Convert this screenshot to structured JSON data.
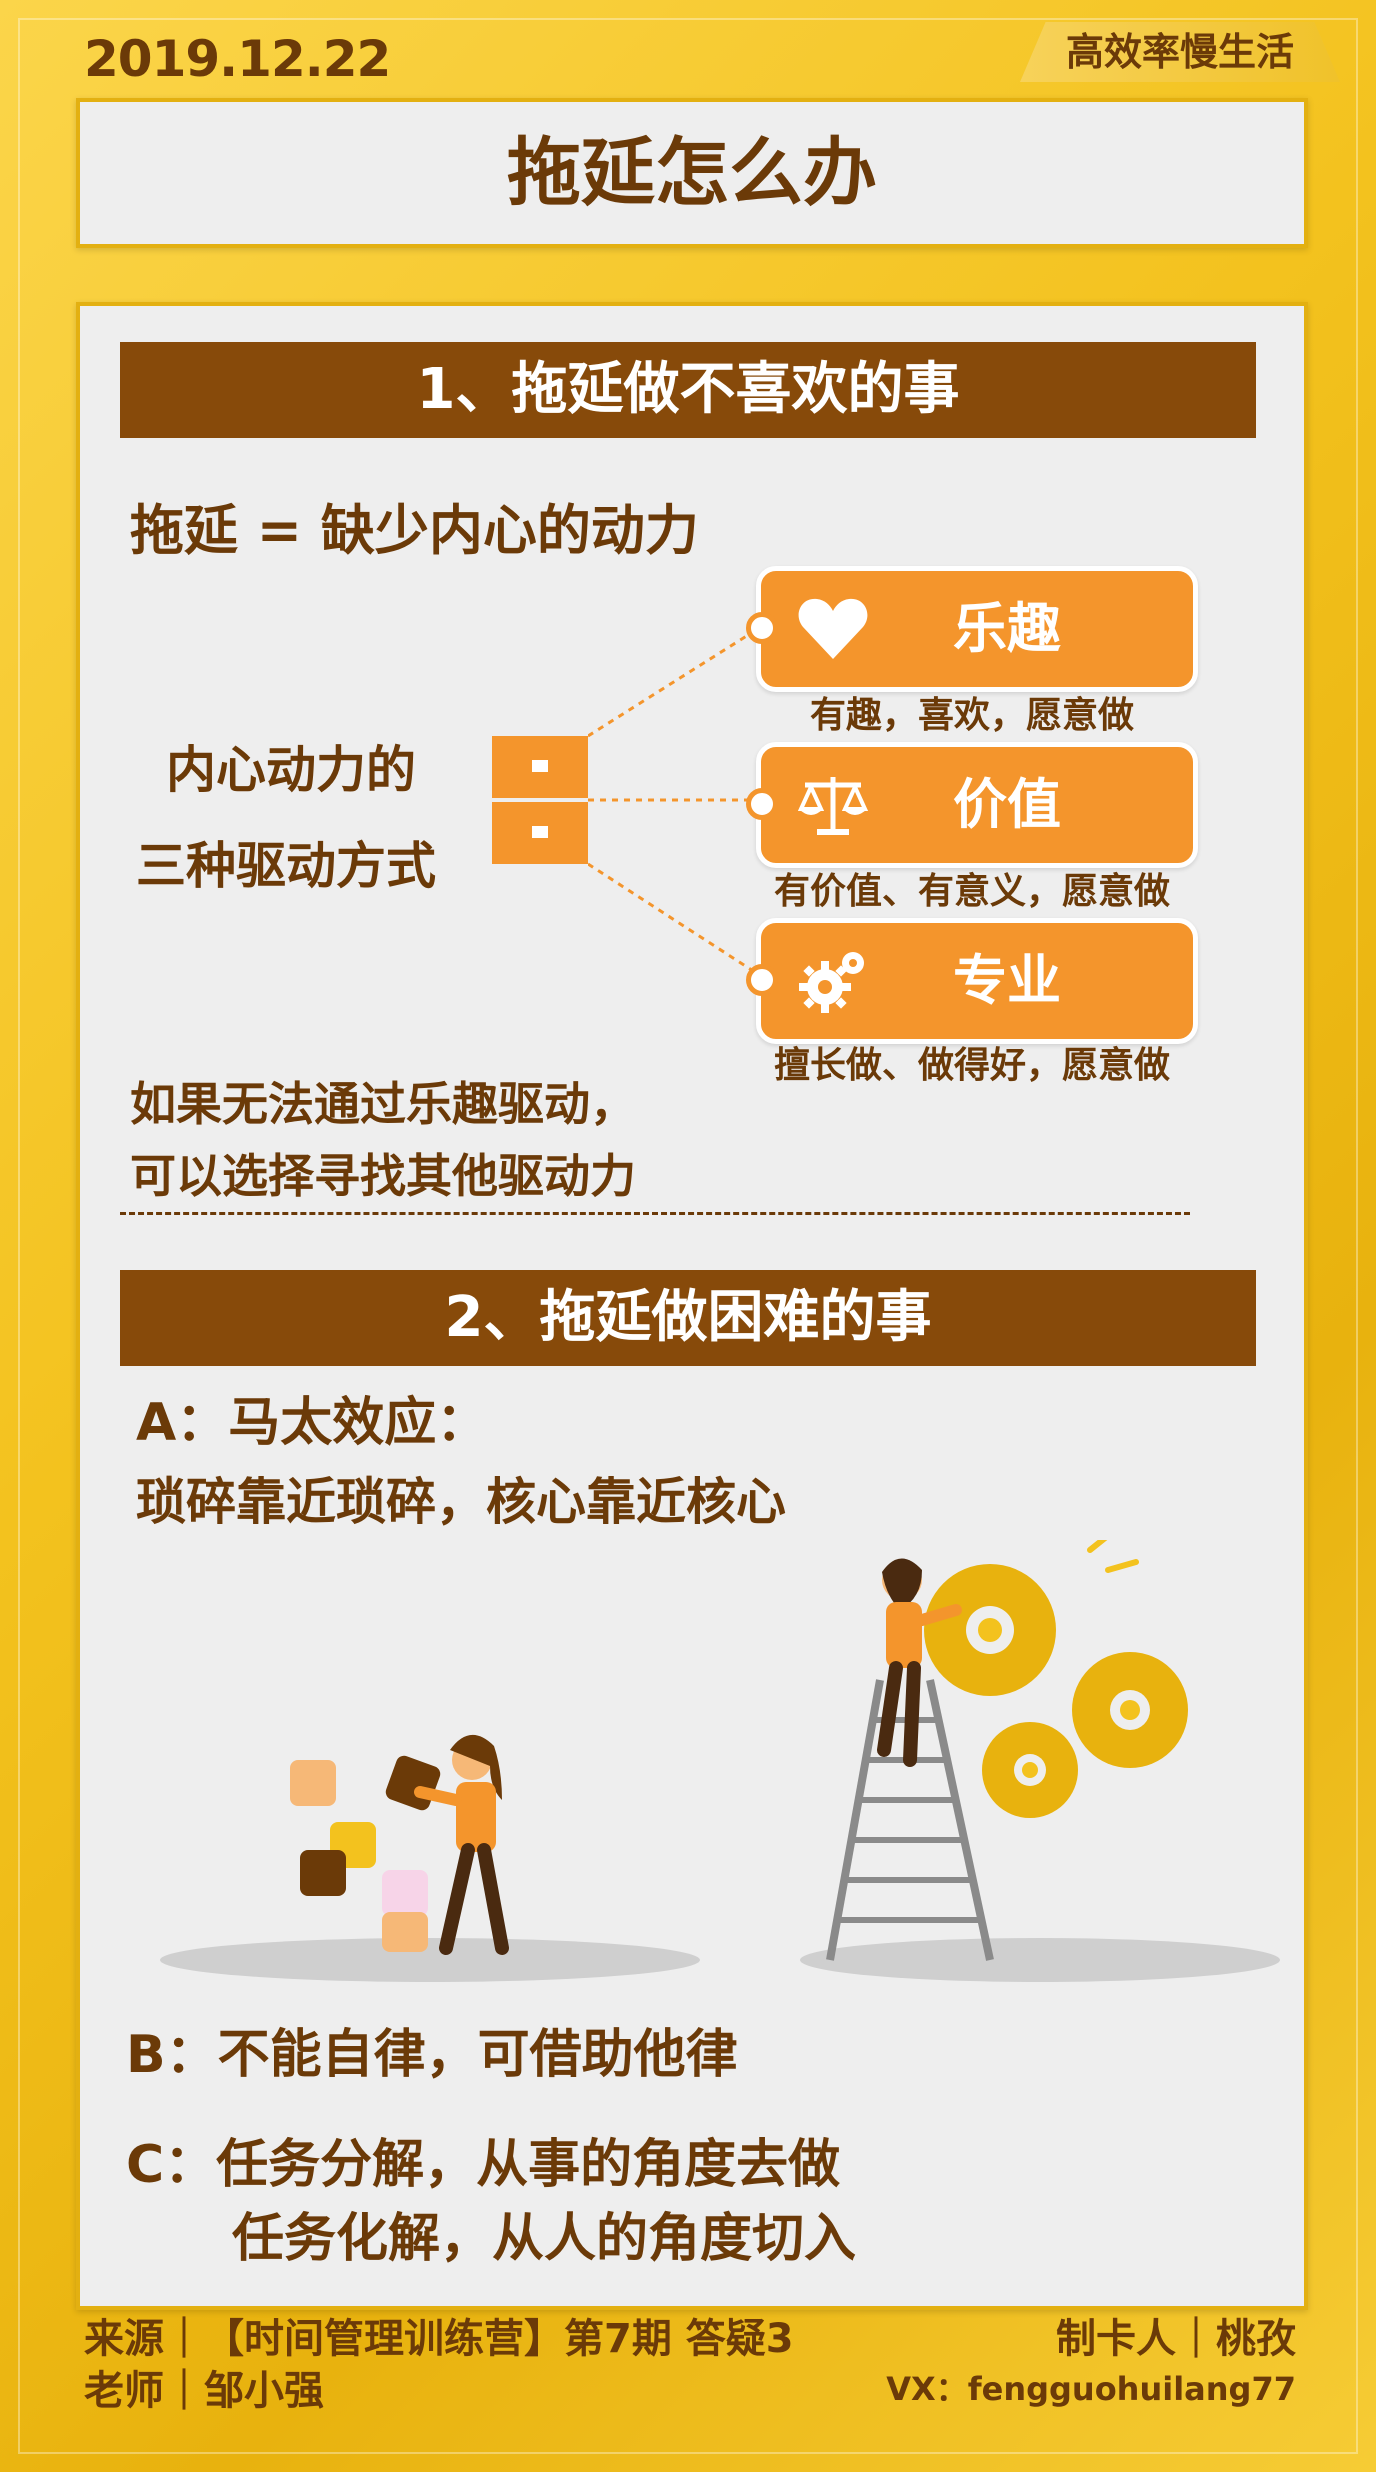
{
  "header": {
    "date": "2019.12.22",
    "brand": "高效率慢生活",
    "title": "拖延怎么办"
  },
  "section1": {
    "heading": "1、拖延做不喜欢的事",
    "equation": "拖延 = 缺少内心的动力",
    "center_label_line1": "内心动力的",
    "center_label_line2": "三种驱动方式",
    "drivers": [
      {
        "label": "乐趣",
        "icon": "heart-icon",
        "desc": "有趣，喜欢，愿意做"
      },
      {
        "label": "价值",
        "icon": "scale-icon",
        "desc": "有价值、有意义，愿意做"
      },
      {
        "label": "专业",
        "icon": "gears-icon",
        "desc": "擅长做、做得好，愿意做"
      }
    ],
    "note_line1": "如果无法通过乐趣驱动，",
    "note_line2": "可以选择寻找其他驱动力"
  },
  "section2": {
    "heading": "2、拖延做困难的事",
    "a_line1": "A：马太效应：",
    "a_line2": "琐碎靠近琐碎，核心靠近核心",
    "b_line": "B：不能自律，可借助他律",
    "c_line1": "C：任务分解，从事的角度去做",
    "c_line2": "任务化解，从人的角度切入"
  },
  "footer": {
    "source_line": "来源｜【时间管理训练营】第7期 答疑3",
    "teacher_line": "老师｜邹小强",
    "maker_line": "制卡人｜桃孜",
    "vx_line": "VX：fengguohuilang77"
  },
  "colors": {
    "brown": "#6b3a08",
    "bar_brown": "#874a0a",
    "orange": "#f4952c",
    "gold": "#f3c21e",
    "panel": "#eeeeee"
  }
}
